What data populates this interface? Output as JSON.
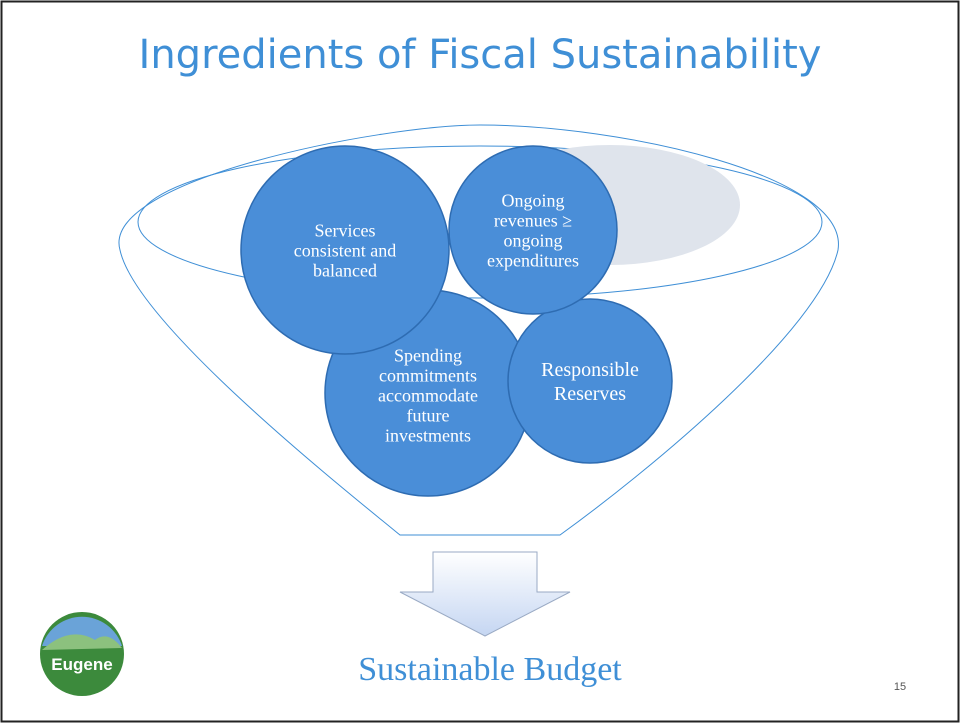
{
  "title": "Ingredients of Fiscal Sustainability",
  "nodes": [
    {
      "label": [
        "Services",
        "consistent and",
        "balanced"
      ]
    },
    {
      "label": [
        "Ongoing",
        "revenues ≥",
        "ongoing",
        "expenditures"
      ]
    },
    {
      "label": [
        "Spending",
        "commitments",
        "accommodate",
        "future",
        "investments"
      ]
    },
    {
      "label": [
        "Responsible",
        "Reserves"
      ]
    }
  ],
  "result": "Sustainable Budget",
  "logo": "Eugene",
  "page_number": "15"
}
